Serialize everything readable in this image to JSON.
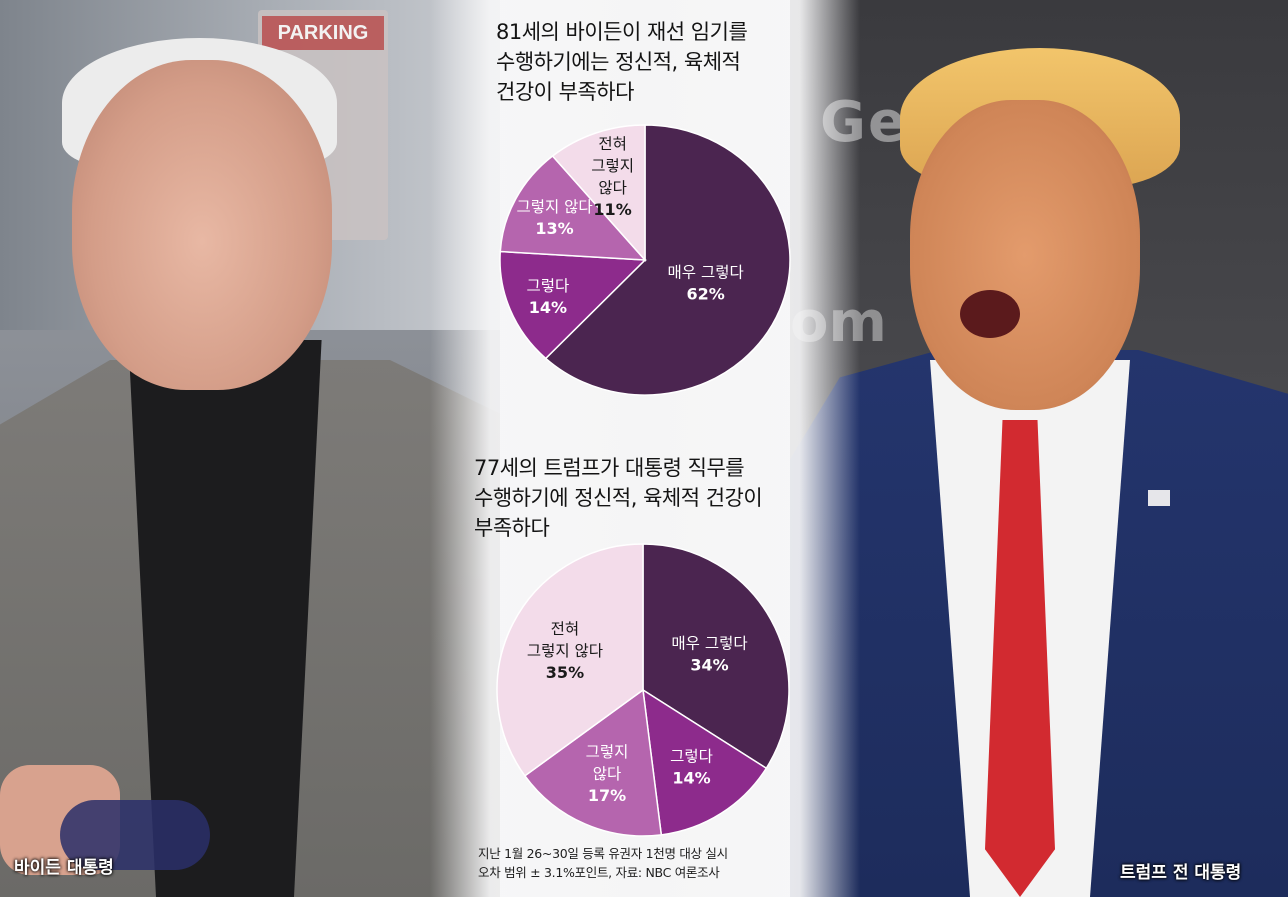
{
  "photo_captions": {
    "left": "바이든 대통령",
    "right": "트럼프 전 대통령"
  },
  "background_signs": {
    "left_sign": "PARKING",
    "right_sign_1": "Get",
    "right_sign_2": "om"
  },
  "footnote": {
    "line1": "지난 1월 26~30일 등록 유권자 1천명 대상 실시",
    "line2": "오차 범위 ± 3.1%포인트, 자료: NBC 여론조사"
  },
  "colors": {
    "very_agree": "#4b2550",
    "agree": "#8d2b8c",
    "disagree": "#b565ae",
    "strongly_disagree": "#f3dcea"
  },
  "chart_data": [
    {
      "type": "pie",
      "title": "81세의 바이든이 재선 임기를\n수행하기에는 정신적, 육체적\n건강이 부족하다",
      "slices": [
        {
          "label": "매우 그렇다",
          "value": 62,
          "value_label": "62%",
          "color": "#4b2550",
          "text_color": "#ffffff"
        },
        {
          "label": "그렇다",
          "value": 14,
          "value_label": "14%",
          "color": "#8d2b8c",
          "text_color": "#ffffff"
        },
        {
          "label": "그렇지 않다",
          "value": 13,
          "value_label": "13%",
          "color": "#b565ae",
          "text_color": "#ffffff"
        },
        {
          "label": "전혀\n그렇지\n않다",
          "value": 11,
          "value_label": "11%",
          "color": "#f3dcea",
          "text_color": "#1a1a1a"
        }
      ]
    },
    {
      "type": "pie",
      "title": "77세의 트럼프가 대통령 직무를\n수행하기에 정신적, 육체적 건강이\n부족하다",
      "slices": [
        {
          "label": "매우 그렇다",
          "value": 34,
          "value_label": "34%",
          "color": "#4b2550",
          "text_color": "#ffffff"
        },
        {
          "label": "그렇다",
          "value": 14,
          "value_label": "14%",
          "color": "#8d2b8c",
          "text_color": "#ffffff"
        },
        {
          "label": "그렇지\n않다",
          "value": 17,
          "value_label": "17%",
          "color": "#b565ae",
          "text_color": "#ffffff"
        },
        {
          "label": "전혀\n그렇지 않다",
          "value": 35,
          "value_label": "35%",
          "color": "#f3dcea",
          "text_color": "#1a1a1a"
        }
      ]
    }
  ]
}
